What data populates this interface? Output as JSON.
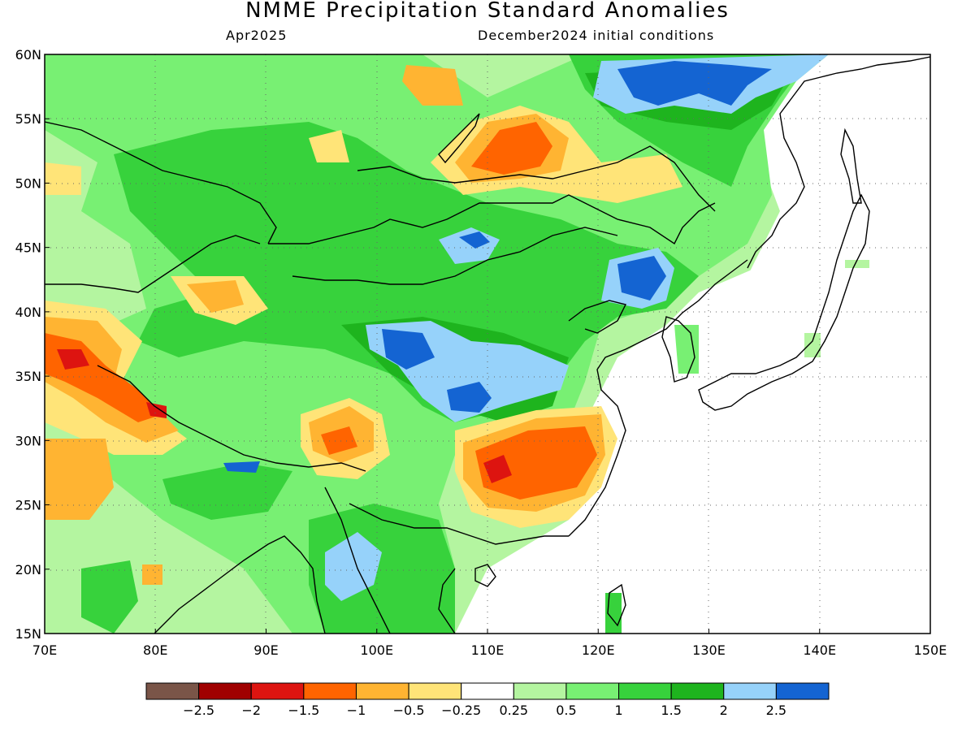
{
  "title": "NMME Precipitation Standard Anomalies",
  "target_month": "Apr2025",
  "initial_conditions": "December2024 initial conditions",
  "map": {
    "lon_range": [
      70,
      150
    ],
    "lat_range": [
      15,
      60
    ],
    "lat_labels": [
      "60N",
      "55N",
      "50N",
      "45N",
      "40N",
      "35N",
      "30N",
      "25N",
      "20N",
      "15N"
    ],
    "lat_values": [
      60,
      55,
      50,
      45,
      40,
      35,
      30,
      25,
      20,
      15
    ],
    "lon_labels": [
      "70E",
      "80E",
      "90E",
      "100E",
      "110E",
      "120E",
      "130E",
      "140E",
      "150E"
    ],
    "lon_values": [
      70,
      80,
      90,
      100,
      110,
      120,
      130,
      140,
      150
    ],
    "gridlines": "dotted"
  },
  "colorbar": {
    "colors": [
      "#7a5548",
      "#a00000",
      "#dd1410",
      "#ff6400",
      "#ffb432",
      "#ffe478",
      "#ffffff",
      "#b4f5a0",
      "#78f073",
      "#37d23c",
      "#1eb41e",
      "#96d2fa",
      "#1464d2"
    ],
    "labels": [
      "−2.5",
      "−2",
      "−1.5",
      "−1",
      "−0.5",
      "−0.25",
      "0.25",
      "0.5",
      "1",
      "1.5",
      "2",
      "2.5"
    ]
  }
}
